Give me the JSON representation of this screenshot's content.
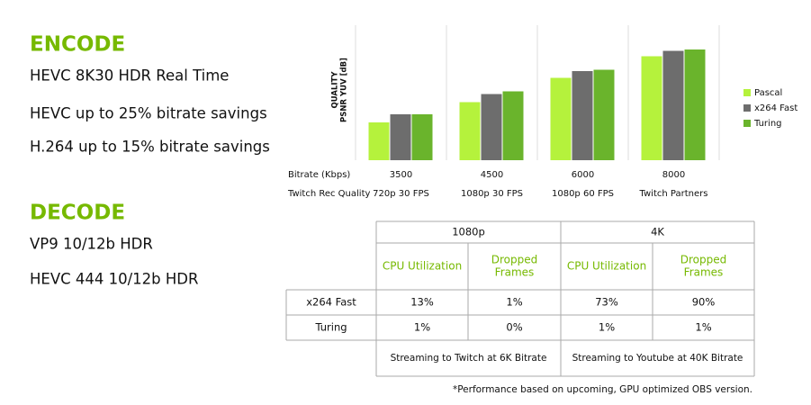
{
  "encode": {
    "title": "ENCODE",
    "items": [
      "HEVC 8K30 HDR Real Time",
      "HEVC up to 25% bitrate savings",
      "H.264 up to 15% bitrate savings"
    ]
  },
  "decode": {
    "title": "DECODE",
    "items": [
      "VP9 10/12b HDR",
      "HEVC 444 10/12b HDR"
    ]
  },
  "chart_data": {
    "type": "bar",
    "y_label": [
      "QUALITY",
      "PSNR YUV [dB]"
    ],
    "x_label": "Bitrate (Kbps)",
    "categories": [
      "3500",
      "4500",
      "6000",
      "8000"
    ],
    "secondary_label": "Twitch Rec Quality",
    "secondary_categories": [
      "720p 30 FPS",
      "1080p 30 FPS",
      "1080p 60 FPS",
      "Twitch Partners"
    ],
    "ylim": [
      0,
      100
    ],
    "series": [
      {
        "name": "Pascal",
        "color": "#b5f23c",
        "values": [
          28,
          43,
          61,
          77
        ]
      },
      {
        "name": "x264 Fast",
        "color": "#6d6d6d",
        "values": [
          34,
          49,
          66,
          81
        ]
      },
      {
        "name": "Turing",
        "color": "#6ab42c",
        "values": [
          34,
          51,
          67,
          82
        ]
      }
    ]
  },
  "table": {
    "groups": [
      "1080p",
      "4K"
    ],
    "columns": [
      "CPU Utilization",
      "Dropped Frames",
      "CPU Utilization",
      "Dropped Frames"
    ],
    "rows": [
      {
        "label": "x264 Fast",
        "cells": [
          "13%",
          "1%",
          "73%",
          "90%"
        ]
      },
      {
        "label": "Turing",
        "cells": [
          "1%",
          "0%",
          "1%",
          "1%"
        ]
      }
    ],
    "notes": [
      "Streaming to Twitch at 6K Bitrate",
      "Streaming to Youtube at 40K Bitrate"
    ]
  },
  "footnote": "*Performance based on upcoming, GPU optimized OBS version."
}
